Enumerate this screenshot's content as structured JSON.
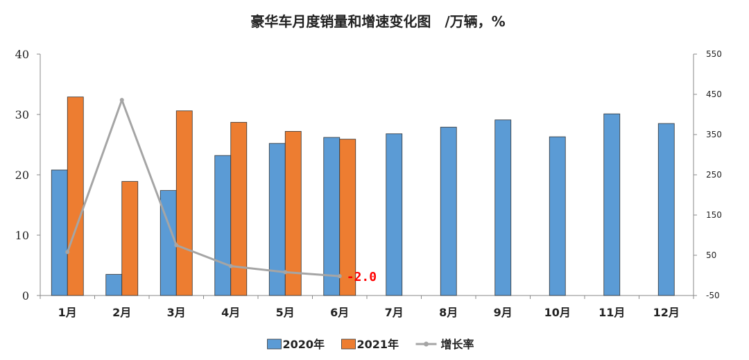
{
  "chart_data": {
    "type": "bar",
    "title": "豪华车月度销量和增速变化图　/万辆，%",
    "categories": [
      "1月",
      "2月",
      "3月",
      "4月",
      "5月",
      "6月",
      "7月",
      "8月",
      "9月",
      "10月",
      "11月",
      "12月"
    ],
    "series": [
      {
        "name": "2020年",
        "type": "bar",
        "axis": "left",
        "color": "#5b9bd5",
        "values": [
          20.8,
          3.5,
          17.4,
          23.2,
          25.2,
          26.2,
          26.8,
          27.9,
          29.1,
          26.3,
          30.1,
          28.5
        ]
      },
      {
        "name": "2021年",
        "type": "bar",
        "axis": "left",
        "color": "#ed7d31",
        "values": [
          32.9,
          18.9,
          30.6,
          28.7,
          27.2,
          25.9,
          null,
          null,
          null,
          null,
          null,
          null
        ]
      },
      {
        "name": "增长率",
        "type": "line",
        "axis": "right",
        "color": "#a5a5a5",
        "values": [
          58,
          436,
          75,
          23,
          8,
          -2.0,
          null,
          null,
          null,
          null,
          null,
          null
        ]
      }
    ],
    "ylim_left": [
      0,
      40
    ],
    "yticks_left": [
      0,
      10,
      20,
      30,
      40
    ],
    "ylim_right": [
      -50,
      550
    ],
    "yticks_right": [
      -50,
      50,
      150,
      250,
      350,
      450,
      550
    ],
    "data_labels": [
      {
        "series": "增长率",
        "category": "6月",
        "text": "-2.0",
        "color": "#ff0000"
      }
    ],
    "legend": "bottom",
    "grid": false
  }
}
